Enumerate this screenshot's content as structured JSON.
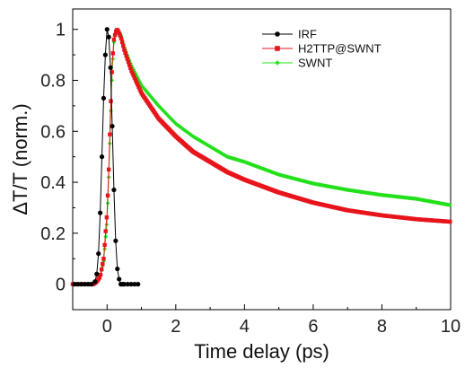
{
  "chart_data": {
    "type": "scatter",
    "title": "",
    "xlabel": "Time delay (ps)",
    "ylabel": "ΔT/T (norm.)",
    "xlim": [
      -1,
      10
    ],
    "ylim": [
      -0.1,
      1.08
    ],
    "xticks": [
      0,
      2,
      4,
      6,
      8,
      10
    ],
    "xtick_labels": [
      "0",
      "2",
      "4",
      "6",
      "8",
      "10"
    ],
    "yticks": [
      0,
      0.2,
      0.4,
      0.6,
      0.8,
      1
    ],
    "ytick_labels": [
      "0",
      "0.2",
      "0.4",
      "0.6",
      "0.8",
      "1"
    ],
    "grid": false,
    "legend_position": "top-right",
    "series": [
      {
        "name": "IRF",
        "color": "#000000",
        "marker": "circle",
        "x": [
          -0.95,
          -0.85,
          -0.75,
          -0.65,
          -0.55,
          -0.45,
          -0.35,
          -0.3,
          -0.25,
          -0.2,
          -0.15,
          -0.1,
          -0.05,
          0.0,
          0.05,
          0.1,
          0.15,
          0.2,
          0.25,
          0.3,
          0.35,
          0.4,
          0.45,
          0.5,
          0.6,
          0.7,
          0.8,
          0.9
        ],
        "y": [
          0.0,
          0.0,
          0.0,
          0.0,
          0.0,
          0.0,
          0.01,
          0.04,
          0.12,
          0.28,
          0.5,
          0.73,
          0.9,
          1.0,
          0.97,
          0.85,
          0.62,
          0.37,
          0.17,
          0.06,
          0.02,
          0.0,
          0.0,
          0.0,
          0.0,
          0.0,
          0.0,
          0.0
        ]
      },
      {
        "name": "H2TTP@SWNT",
        "color": "#e8141c",
        "marker": "square",
        "x": [
          -1.0,
          -0.8,
          -0.6,
          -0.4,
          -0.3,
          -0.2,
          -0.1,
          0.0,
          0.05,
          0.1,
          0.15,
          0.2,
          0.25,
          0.3,
          0.4,
          0.5,
          0.7,
          1.0,
          1.5,
          2.0,
          2.5,
          3.0,
          3.5,
          4.0,
          5.0,
          6.0,
          7.0,
          8.0,
          9.0,
          10.0
        ],
        "y": [
          0.0,
          0.0,
          0.0,
          0.0,
          0.01,
          0.03,
          0.1,
          0.28,
          0.45,
          0.68,
          0.87,
          0.96,
          0.99,
          1.0,
          0.97,
          0.92,
          0.84,
          0.75,
          0.65,
          0.58,
          0.52,
          0.48,
          0.44,
          0.41,
          0.36,
          0.32,
          0.29,
          0.27,
          0.255,
          0.245
        ]
      },
      {
        "name": "SWNT",
        "color": "#22e01a",
        "marker": "diamond",
        "x": [
          -1.0,
          -0.8,
          -0.6,
          -0.4,
          -0.3,
          -0.2,
          -0.1,
          0.0,
          0.05,
          0.1,
          0.15,
          0.2,
          0.25,
          0.3,
          0.4,
          0.5,
          0.7,
          1.0,
          1.5,
          2.0,
          2.5,
          3.0,
          3.5,
          4.0,
          5.0,
          6.0,
          7.0,
          8.0,
          9.0,
          10.0
        ],
        "y": [
          0.0,
          0.0,
          0.0,
          0.0,
          0.01,
          0.03,
          0.09,
          0.25,
          0.42,
          0.64,
          0.84,
          0.95,
          0.99,
          1.0,
          0.98,
          0.93,
          0.86,
          0.78,
          0.7,
          0.63,
          0.58,
          0.54,
          0.5,
          0.48,
          0.43,
          0.395,
          0.37,
          0.35,
          0.335,
          0.31
        ]
      }
    ]
  }
}
